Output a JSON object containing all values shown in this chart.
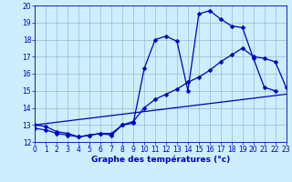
{
  "xlabel": "Graphe des températures (°c)",
  "bg_color": "#cceeff",
  "line_color": "#0000bb",
  "grid_color": "#99bbcc",
  "xlim": [
    0,
    23
  ],
  "ylim": [
    12,
    20
  ],
  "yticks": [
    12,
    13,
    14,
    15,
    16,
    17,
    18,
    19,
    20
  ],
  "xticks": [
    0,
    1,
    2,
    3,
    4,
    5,
    6,
    7,
    8,
    9,
    10,
    11,
    12,
    13,
    14,
    15,
    16,
    17,
    18,
    19,
    20,
    21,
    22,
    23
  ],
  "curve1_x": [
    0,
    1,
    2,
    3,
    4,
    5,
    6,
    7,
    8,
    9,
    10,
    11,
    12,
    13,
    14,
    15,
    16,
    17,
    18,
    19,
    20,
    21,
    22
  ],
  "curve1_y": [
    12.8,
    12.7,
    12.5,
    12.4,
    12.3,
    12.4,
    12.5,
    12.4,
    13.0,
    13.1,
    16.3,
    18.0,
    18.2,
    17.9,
    15.0,
    19.5,
    19.7,
    19.2,
    18.8,
    18.7,
    16.9,
    15.2,
    15.0
  ],
  "curve2_x": [
    0,
    1,
    2,
    3,
    4,
    5,
    6,
    7,
    8,
    9,
    10,
    11,
    12,
    13,
    14,
    15,
    16,
    17,
    18,
    19,
    20,
    21,
    22,
    23
  ],
  "curve2_y": [
    13.0,
    12.9,
    12.6,
    12.5,
    12.3,
    12.4,
    12.5,
    12.5,
    13.0,
    13.2,
    14.0,
    14.5,
    14.8,
    15.1,
    15.5,
    15.8,
    16.2,
    16.7,
    17.1,
    17.5,
    17.0,
    16.9,
    16.7,
    15.2
  ],
  "curve3_x": [
    0,
    23
  ],
  "curve3_y": [
    13.0,
    14.8
  ],
  "marker": "D",
  "markersize": 2.5,
  "linewidth": 0.9,
  "tick_fontsize": 5.5,
  "xlabel_fontsize": 6.5
}
